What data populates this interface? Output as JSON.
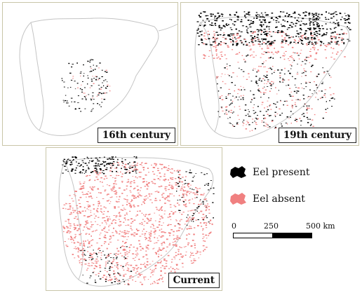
{
  "maps": [
    {
      "id": "16th",
      "label": "16th century"
    },
    {
      "id": "19th",
      "label": "19th century"
    },
    {
      "id": "current",
      "label": "Current"
    }
  ],
  "legend": {
    "items": [
      {
        "label": "Eel present",
        "color": "#000000",
        "icon": "eel-present-swatch-icon"
      },
      {
        "label": "Eel absent",
        "color": "#f08080",
        "icon": "eel-absent-swatch-icon"
      }
    ]
  },
  "scale": {
    "ticks": [
      "0",
      "250",
      "500 km"
    ],
    "segment_colors": [
      "#ffffff",
      "#000000"
    ]
  },
  "colors": {
    "outline": "#c4c4c4",
    "present": "#000000",
    "absent": "#f08080",
    "panel_border": "#c9c6a8"
  }
}
